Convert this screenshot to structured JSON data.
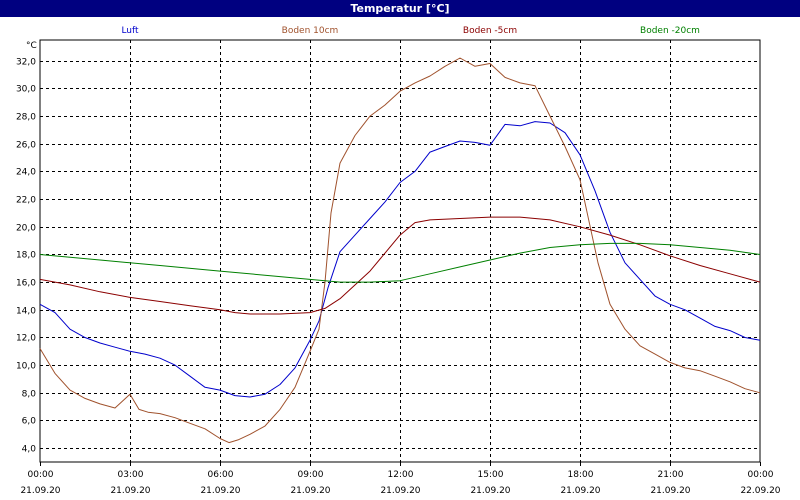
{
  "window": {
    "title": "Temperatur [°C]"
  },
  "chart_data": {
    "type": "line",
    "title": "Temperatur [°C]",
    "ylabel": "°C",
    "ylim": [
      3.0,
      33.5
    ],
    "yticks": [
      4.0,
      6.0,
      8.0,
      10.0,
      12.0,
      14.0,
      16.0,
      18.0,
      20.0,
      22.0,
      24.0,
      26.0,
      28.0,
      30.0,
      32.0
    ],
    "xlim": [
      0,
      24
    ],
    "xticks": [
      {
        "x": 0,
        "time": "00:00",
        "date": "21.09.20"
      },
      {
        "x": 3,
        "time": "03:00",
        "date": "21.09.20"
      },
      {
        "x": 6,
        "time": "06:00",
        "date": "21.09.20"
      },
      {
        "x": 9,
        "time": "09:00",
        "date": "21.09.20"
      },
      {
        "x": 12,
        "time": "12:00",
        "date": "21.09.20"
      },
      {
        "x": 15,
        "time": "15:00",
        "date": "21.09.20"
      },
      {
        "x": 18,
        "time": "18:00",
        "date": "21.09.20"
      },
      {
        "x": 21,
        "time": "21:00",
        "date": "21.09.20"
      },
      {
        "x": 24,
        "time": "00:00",
        "date": "22.09.20"
      }
    ],
    "grid": true,
    "legend_position": "top",
    "series": [
      {
        "name": "Luft",
        "color": "#0000cc",
        "x": [
          0,
          0.5,
          1,
          1.5,
          2,
          2.5,
          3,
          3.5,
          4,
          4.5,
          5,
          5.5,
          6,
          6.5,
          7,
          7.5,
          8,
          8.5,
          9,
          9.3,
          9.6,
          10,
          10.5,
          11,
          11.5,
          12,
          12.5,
          13,
          13.5,
          14,
          14.5,
          15,
          15.5,
          16,
          16.5,
          17,
          17.5,
          18,
          18.5,
          19,
          19.5,
          20,
          20.5,
          21,
          21.5,
          22,
          22.5,
          23,
          23.5,
          24
        ],
        "y": [
          14.4,
          13.8,
          12.6,
          12.0,
          11.6,
          11.3,
          11.0,
          10.8,
          10.5,
          10.0,
          9.2,
          8.4,
          8.2,
          7.8,
          7.7,
          7.9,
          8.6,
          9.8,
          11.8,
          13.2,
          15.6,
          18.2,
          19.4,
          20.6,
          21.8,
          23.2,
          24.0,
          25.4,
          25.8,
          26.2,
          26.1,
          25.9,
          27.4,
          27.3,
          27.6,
          27.5,
          26.8,
          25.2,
          22.6,
          19.6,
          17.4,
          16.2,
          15.0,
          14.4,
          14.0,
          13.4,
          12.8,
          12.5,
          12.0,
          11.8
        ]
      },
      {
        "name": "Boden 10cm",
        "color": "#a0522d",
        "x": [
          0,
          0.5,
          1,
          1.5,
          2,
          2.5,
          3,
          3.3,
          3.6,
          4,
          4.5,
          5,
          5.5,
          6,
          6.3,
          6.6,
          7,
          7.5,
          8,
          8.5,
          9,
          9.3,
          9.5,
          9.7,
          10,
          10.5,
          11,
          11.5,
          12,
          12.5,
          13,
          13.5,
          14,
          14.5,
          15,
          15.5,
          16,
          16.5,
          17,
          17.5,
          18,
          18.3,
          18.6,
          19,
          19.5,
          20,
          20.5,
          21,
          21.5,
          22,
          22.5,
          23,
          23.5,
          24
        ],
        "y": [
          11.2,
          9.4,
          8.2,
          7.6,
          7.2,
          6.9,
          7.9,
          6.8,
          6.6,
          6.5,
          6.2,
          5.8,
          5.4,
          4.7,
          4.4,
          4.6,
          5.0,
          5.6,
          6.8,
          8.4,
          11.0,
          12.6,
          16.0,
          21.0,
          24.6,
          26.6,
          28.0,
          28.8,
          29.8,
          30.4,
          30.9,
          31.6,
          32.2,
          31.6,
          31.8,
          30.8,
          30.4,
          30.2,
          28.0,
          25.8,
          23.4,
          20.4,
          17.4,
          14.4,
          12.6,
          11.4,
          10.8,
          10.2,
          9.8,
          9.6,
          9.2,
          8.8,
          8.3,
          8.0
        ]
      },
      {
        "name": "Boden -5cm",
        "color": "#8b0000",
        "x": [
          0,
          1,
          2,
          3,
          4,
          5,
          6,
          6.5,
          7,
          8,
          9,
          9.5,
          10,
          11,
          12,
          12.5,
          13,
          14,
          15,
          16,
          17,
          18,
          19,
          20,
          21,
          22,
          23,
          24
        ],
        "y": [
          16.2,
          15.8,
          15.3,
          14.9,
          14.6,
          14.3,
          14.0,
          13.8,
          13.7,
          13.7,
          13.8,
          14.1,
          14.8,
          16.8,
          19.4,
          20.3,
          20.5,
          20.6,
          20.7,
          20.7,
          20.5,
          20.0,
          19.4,
          18.7,
          17.9,
          17.2,
          16.6,
          16.0
        ]
      },
      {
        "name": "Boden -20cm",
        "color": "#008000",
        "x": [
          0,
          2,
          4,
          6,
          8,
          10,
          11,
          12,
          13,
          14,
          15,
          16,
          17,
          18,
          19,
          20,
          21,
          22,
          23,
          24
        ],
        "y": [
          18.0,
          17.6,
          17.2,
          16.8,
          16.4,
          16.0,
          16.0,
          16.1,
          16.6,
          17.1,
          17.6,
          18.1,
          18.5,
          18.7,
          18.8,
          18.8,
          18.7,
          18.5,
          18.3,
          18.0
        ]
      }
    ]
  }
}
